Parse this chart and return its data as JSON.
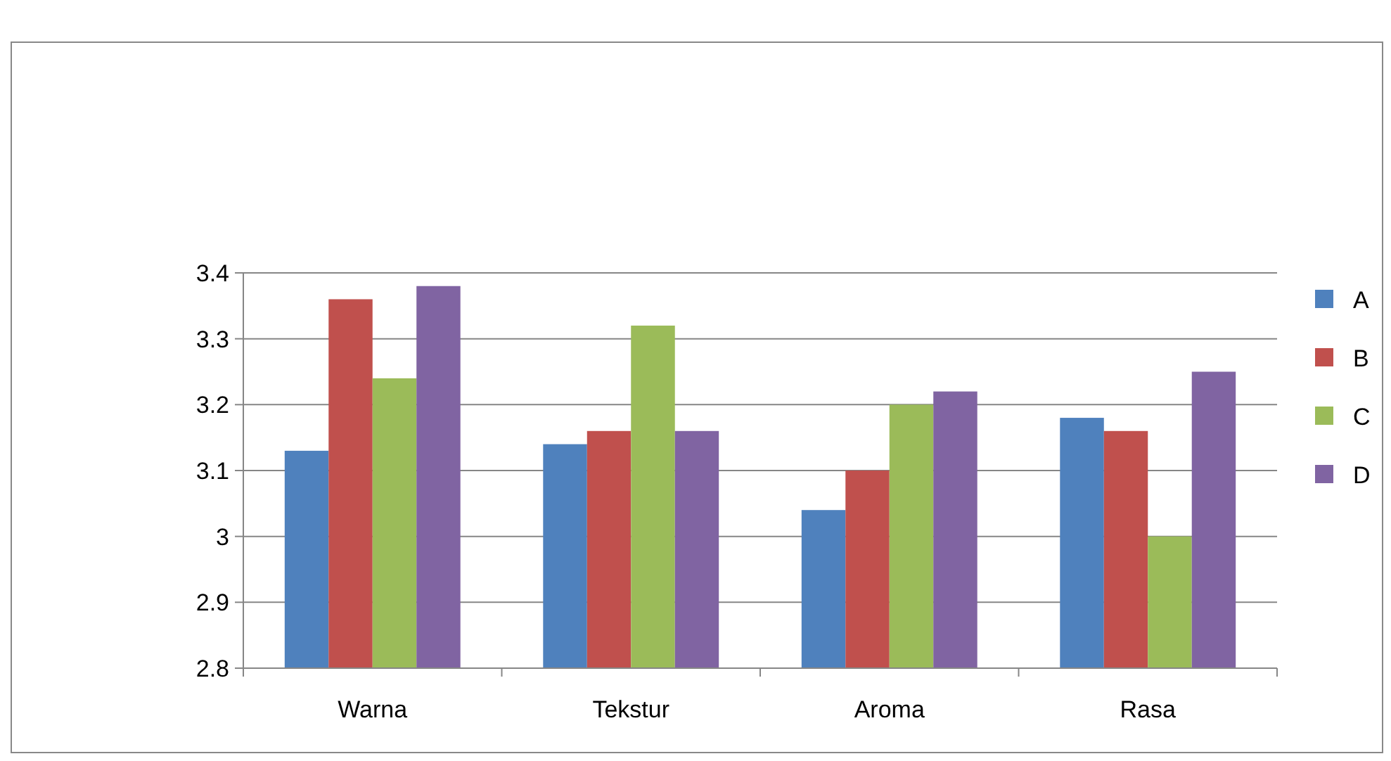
{
  "chart_data": {
    "type": "bar",
    "categories": [
      "Warna",
      "Tekstur",
      "Aroma",
      "Rasa"
    ],
    "series": [
      {
        "name": "A",
        "color": "#4f81bd",
        "values": [
          3.13,
          3.14,
          3.04,
          3.18
        ]
      },
      {
        "name": "B",
        "color": "#c0504d",
        "values": [
          3.36,
          3.16,
          3.1,
          3.16
        ]
      },
      {
        "name": "C",
        "color": "#9bbb59",
        "values": [
          3.24,
          3.32,
          3.2,
          3.0
        ]
      },
      {
        "name": "D",
        "color": "#8064a2",
        "values": [
          3.38,
          3.16,
          3.22,
          3.25
        ]
      }
    ],
    "ylim": [
      2.8,
      3.4
    ],
    "yticks": [
      2.8,
      2.9,
      {
        "value": 3,
        "label": "3"
      },
      3.1,
      3.2,
      3.3,
      3.4
    ],
    "grid": "y",
    "legend": "right"
  }
}
